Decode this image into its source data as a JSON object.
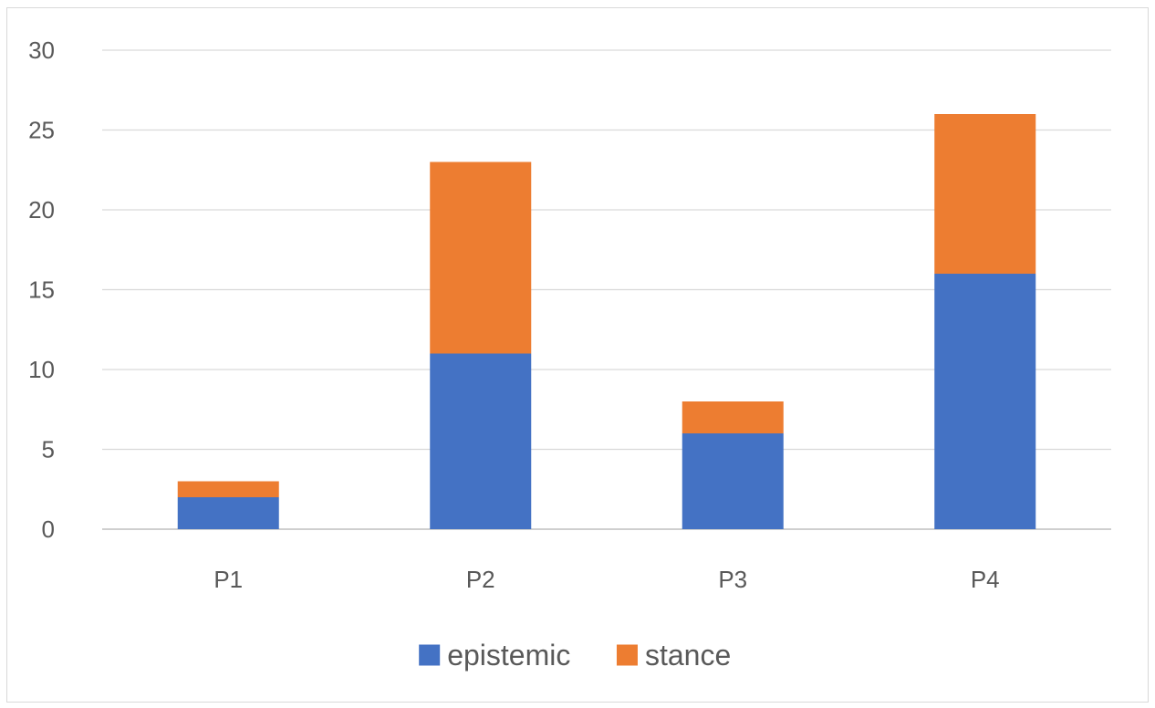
{
  "chart_data": {
    "type": "bar",
    "stacked": true,
    "title": "",
    "xlabel": "",
    "ylabel": "",
    "categories": [
      "P1",
      "P2",
      "P3",
      "P4"
    ],
    "series": [
      {
        "name": "epistemic",
        "color": "#4472C4",
        "values": [
          2,
          11,
          6,
          16
        ]
      },
      {
        "name": "stance",
        "color": "#ED7D31",
        "values": [
          1,
          12,
          2,
          10
        ]
      }
    ],
    "ylim": [
      0,
      30
    ],
    "yticks": [
      0,
      5,
      10,
      15,
      20,
      25,
      30
    ],
    "grid": true,
    "legend_position": "bottom"
  }
}
